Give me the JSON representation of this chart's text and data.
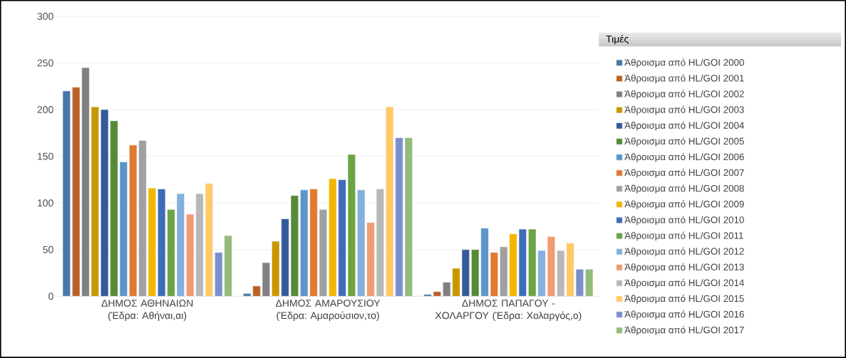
{
  "chart_data": {
    "type": "bar",
    "legend_title": "Τιμές",
    "categories": [
      "ΔΗΜΟΣ ΑΘΗΝΑΙΩΝ (Έδρα: Αθήναι,αι)",
      "ΔΗΜΟΣ ΑΜΑΡΟΥΣΙΟΥ (Έδρα: Αμαρούσιον,το)",
      "ΔΗΜΟΣ ΠΑΠΑΓΟΥ - ΧΟΛΑΡΓΟΥ (Έδρα: Χολαργός,ο)"
    ],
    "series": [
      {
        "name": "Άθροισμα από HL/GOI 2000",
        "color": "#4878a8",
        "values": [
          220,
          3,
          2
        ]
      },
      {
        "name": "Άθροισμα από HL/GOI 2001",
        "color": "#bb6126",
        "values": [
          224,
          11,
          5
        ]
      },
      {
        "name": "Άθροισμα από HL/GOI 2002",
        "color": "#808080",
        "values": [
          245,
          36,
          15
        ]
      },
      {
        "name": "Άθροισμα από HL/GOI 2003",
        "color": "#c89700",
        "values": [
          203,
          59,
          30
        ]
      },
      {
        "name": "Άθροισμα από HL/GOI 2004",
        "color": "#335a9a",
        "values": [
          200,
          83,
          50
        ]
      },
      {
        "name": "Άθροισμα από HL/GOI 2005",
        "color": "#578a37",
        "values": [
          188,
          108,
          50
        ]
      },
      {
        "name": "Άθροισμα από HL/GOI 2006",
        "color": "#5b95cb",
        "values": [
          144,
          114,
          73
        ]
      },
      {
        "name": "Άθροισμα από HL/GOI 2007",
        "color": "#e07a33",
        "values": [
          162,
          115,
          47
        ]
      },
      {
        "name": "Άθροισμα από HL/GOI 2008",
        "color": "#a0a0a0",
        "values": [
          167,
          93,
          53
        ]
      },
      {
        "name": "Άθροισμα από HL/GOI 2009",
        "color": "#f2b600",
        "values": [
          116,
          126,
          67
        ]
      },
      {
        "name": "Άθροισμα από HL/GOI 2010",
        "color": "#3f6bbb",
        "values": [
          115,
          125,
          72
        ]
      },
      {
        "name": "Άθροισμα από HL/GOI 2011",
        "color": "#6aa443",
        "values": [
          93,
          152,
          72
        ]
      },
      {
        "name": "Άθροισμα από HL/GOI 2012",
        "color": "#85afdc",
        "values": [
          110,
          114,
          49
        ]
      },
      {
        "name": "Άθροισμα από HL/GOI 2013",
        "color": "#f09c74",
        "values": [
          88,
          79,
          64
        ]
      },
      {
        "name": "Άθροισμα από HL/GOI 2014",
        "color": "#b8b8b8",
        "values": [
          110,
          115,
          49
        ]
      },
      {
        "name": "Άθροισμα από HL/GOI 2015",
        "color": "#ffc966",
        "values": [
          121,
          203,
          57
        ]
      },
      {
        "name": "Άθροισμα από HL/GOI 2016",
        "color": "#7a90cc",
        "values": [
          47,
          170,
          29
        ]
      },
      {
        "name": "Άθροισμα από HL/GOI 2017",
        "color": "#93bb7b",
        "values": [
          65,
          170,
          29
        ]
      }
    ],
    "ylim": [
      0,
      300
    ],
    "yticks": [
      0,
      50,
      100,
      150,
      200,
      250,
      300
    ],
    "grid": "y",
    "legend": "right"
  }
}
